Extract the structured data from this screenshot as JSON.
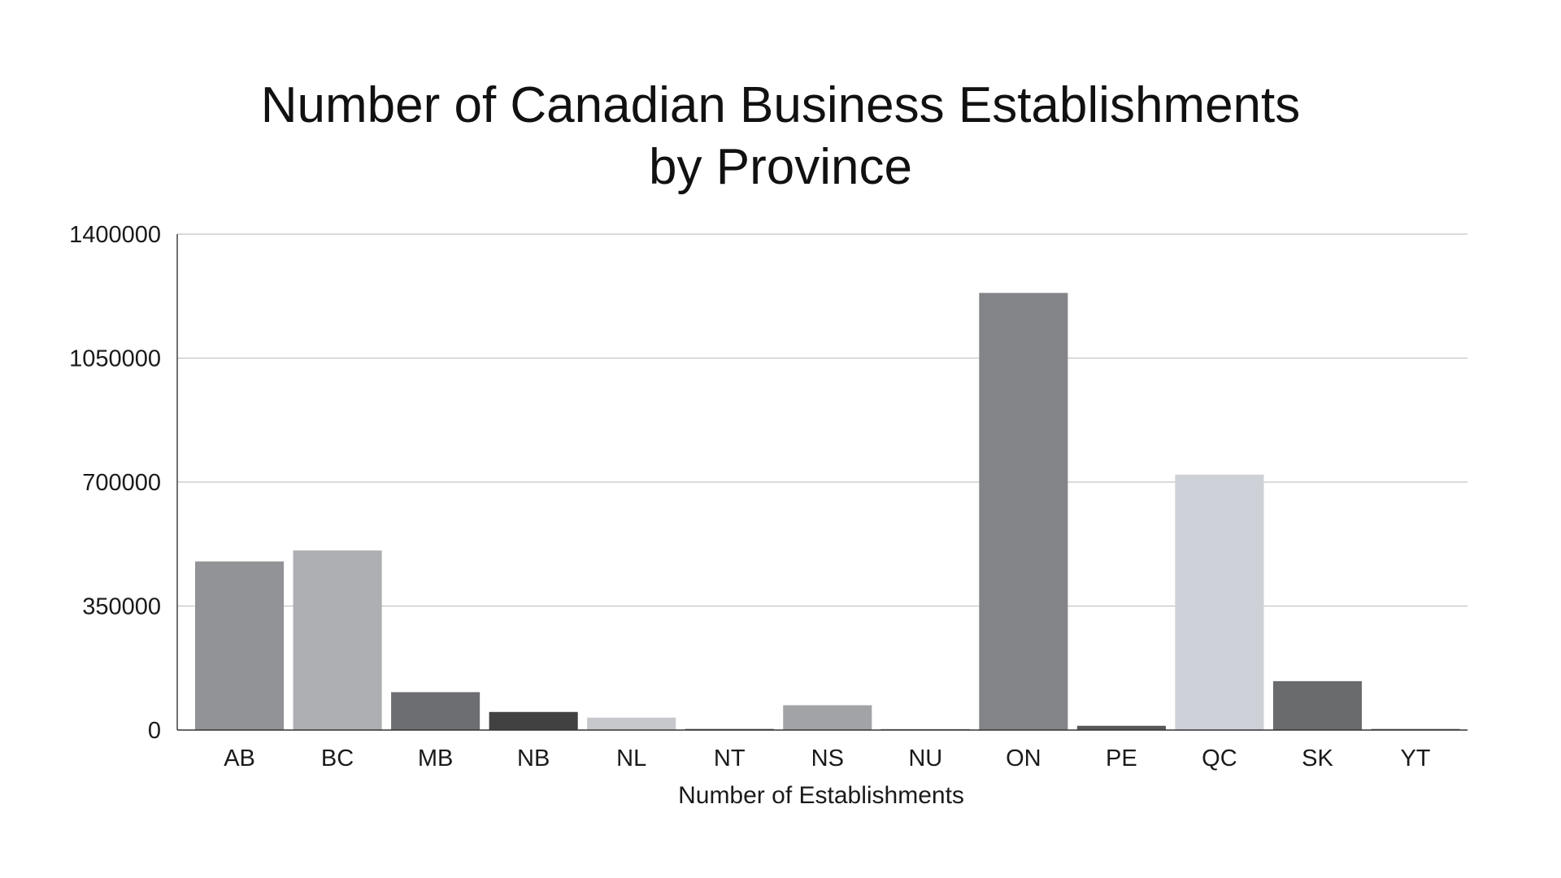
{
  "chart_data": {
    "type": "bar",
    "title_lines": [
      "Number of Canadian Business Establishments",
      "by Province"
    ],
    "xlabel": "Number of Establishments",
    "ylabel": "",
    "ylim": [
      0,
      1400000
    ],
    "yticks": [
      0,
      350000,
      700000,
      1050000,
      1400000
    ],
    "grid": true,
    "categories": [
      "AB",
      "BC",
      "MB",
      "NB",
      "NL",
      "NT",
      "NS",
      "NU",
      "ON",
      "PE",
      "QC",
      "SK",
      "YT"
    ],
    "values": [
      476000,
      507000,
      107000,
      51000,
      35000,
      3000,
      70000,
      1000,
      1234000,
      12000,
      721000,
      138000,
      3000
    ],
    "colors": [
      "#919396",
      "#aeafb2",
      "#6d6e71",
      "#414142",
      "#c6c8cc",
      "#4a4a4a",
      "#a2a3a6",
      "#8a8b8d",
      "#838487",
      "#58595b",
      "#cfd1d8",
      "#6a6b6d",
      "#5c5d60"
    ]
  }
}
